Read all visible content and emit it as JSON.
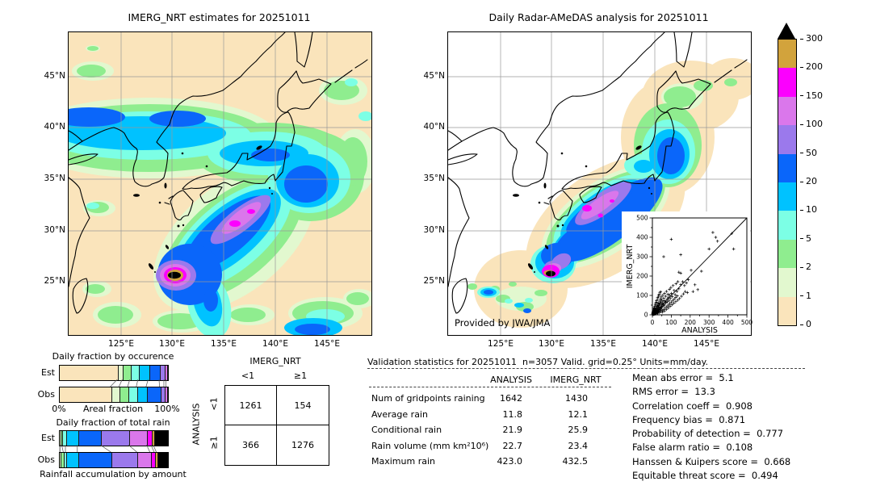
{
  "palette": {
    "levels_mm_day": [
      0,
      1,
      2,
      5,
      10,
      20,
      50,
      100,
      150,
      200,
      300
    ],
    "colors": [
      "#FAE4BB",
      "#E2F8CF",
      "#8FED8F",
      "#7CFFE5",
      "#00C2FF",
      "#0A66FA",
      "#9B79EC",
      "#DA77EB",
      "#FB00FE",
      "#D2A33C"
    ],
    "overflow_color": "#000000",
    "grid_color": "#999999"
  },
  "colorbar": {
    "labels": [
      "300",
      "200",
      "150",
      "100",
      "50",
      "20",
      "10",
      "5",
      "2",
      "1",
      "0"
    ]
  },
  "contingency": {
    "col_group": "IMERG_NRT",
    "row_group": "ANALYSIS",
    "col_labels": [
      "<1",
      "≥1"
    ],
    "row_labels": [
      "<1",
      "≥1"
    ],
    "cells": [
      [
        "1261",
        "154"
      ],
      [
        "366",
        "1276"
      ]
    ]
  },
  "validation": {
    "title": "Validation statistics for 20251011  n=3057 Valid. grid=0.25° Units=mm/day.",
    "columns": [
      "ANALYSIS",
      "IMERG_NRT"
    ],
    "rows": [
      {
        "label": "Num of gridpoints raining",
        "values": [
          "1642",
          "1430"
        ]
      },
      {
        "label": "Average rain",
        "values": [
          "11.8",
          "12.1"
        ]
      },
      {
        "label": "Conditional rain",
        "values": [
          "21.9",
          "25.9"
        ]
      },
      {
        "label": "Rain volume (mm km²10⁶)",
        "values": [
          "22.7",
          "23.4"
        ]
      },
      {
        "label": "Maximum rain",
        "values": [
          "423.0",
          "432.5"
        ]
      }
    ]
  },
  "scores": [
    {
      "label": "Mean abs error",
      "value": "5.1"
    },
    {
      "label": "RMS error",
      "value": "13.3"
    },
    {
      "label": "Correlation coeff",
      "value": "0.908"
    },
    {
      "label": "Frequency bias",
      "value": "0.871"
    },
    {
      "label": "Probability of detection",
      "value": "0.777"
    },
    {
      "label": "False alarm ratio",
      "value": "0.108"
    },
    {
      "label": "Hanssen & Kuipers score",
      "value": "0.668"
    },
    {
      "label": "Equitable threat score",
      "value": "0.494"
    }
  ],
  "chart_data": [
    {
      "type": "heatmap",
      "subtype": "filled-contour precipitation map",
      "title": "IMERG_NRT estimates for 20251011",
      "units": "mm/day",
      "x_ticks": [
        "125°E",
        "130°E",
        "135°E",
        "140°E",
        "145°E"
      ],
      "y_ticks": [
        "45°N",
        "40°N",
        "35°N",
        "30°N",
        "25°N"
      ],
      "levels_mm_day": [
        0,
        1,
        2,
        5,
        10,
        20,
        50,
        100,
        150,
        200,
        300
      ],
      "max_value": 432.5,
      "notes": "tropical-cyclone maximum >300 mm/day near 130E 25.5N; rain band along 40N; heavy SW-NE band south of Japan"
    },
    {
      "type": "heatmap",
      "subtype": "filled-contour precipitation map",
      "title": "Daily Radar-AMeDAS analysis for 20251011",
      "units": "mm/day",
      "credit": "Provided by JWA/JMA",
      "x_ticks": [
        "125°E",
        "130°E",
        "135°E",
        "140°E",
        "145°E"
      ],
      "y_ticks": [
        "45°N",
        "40°N",
        "35°N",
        "30°N",
        "25°N"
      ],
      "levels_mm_day": [
        0,
        1,
        2,
        5,
        10,
        20,
        50,
        100,
        150,
        200,
        300
      ],
      "max_value": 423.0,
      "notes": "radar coverage only near Japan; heavy band along Pacific coast; cyclone core >300 mm/day near 129.5E 25.5N"
    },
    {
      "type": "scatter",
      "xlabel": "ANALYSIS",
      "ylabel": "IMERG_NRT",
      "xlim": [
        0,
        500
      ],
      "ylim": [
        0,
        500
      ],
      "x_ticks": [
        0,
        100,
        200,
        300,
        400,
        500
      ],
      "y_ticks": [
        0,
        100,
        200,
        300,
        400,
        500
      ],
      "identity_line": true,
      "points": [
        [
          2,
          4
        ],
        [
          3,
          1
        ],
        [
          4,
          7
        ],
        [
          5,
          2
        ],
        [
          5,
          10
        ],
        [
          6,
          4
        ],
        [
          7,
          13
        ],
        [
          8,
          3
        ],
        [
          8,
          17
        ],
        [
          9,
          6
        ],
        [
          10,
          5
        ],
        [
          10,
          15
        ],
        [
          11,
          23
        ],
        [
          12,
          8
        ],
        [
          13,
          3
        ],
        [
          14,
          18
        ],
        [
          15,
          9
        ],
        [
          15,
          28
        ],
        [
          16,
          6
        ],
        [
          17,
          25
        ],
        [
          18,
          12
        ],
        [
          19,
          36
        ],
        [
          20,
          8
        ],
        [
          20,
          21
        ],
        [
          21,
          31
        ],
        [
          22,
          14
        ],
        [
          23,
          43
        ],
        [
          24,
          17
        ],
        [
          25,
          10
        ],
        [
          25,
          27
        ],
        [
          26,
          50
        ],
        [
          27,
          21
        ],
        [
          28,
          35
        ],
        [
          29,
          15
        ],
        [
          30,
          24
        ],
        [
          30,
          46
        ],
        [
          31,
          61
        ],
        [
          32,
          18
        ],
        [
          33,
          39
        ],
        [
          34,
          28
        ],
        [
          35,
          56
        ],
        [
          36,
          20
        ],
        [
          37,
          47
        ],
        [
          38,
          30
        ],
        [
          39,
          71
        ],
        [
          40,
          34
        ],
        [
          41,
          58
        ],
        [
          42,
          25
        ],
        [
          43,
          81
        ],
        [
          44,
          40
        ],
        [
          45,
          66
        ],
        [
          46,
          30
        ],
        [
          47,
          92
        ],
        [
          48,
          52
        ],
        [
          50,
          38
        ],
        [
          50,
          76
        ],
        [
          52,
          61
        ],
        [
          54,
          44
        ],
        [
          55,
          101
        ],
        [
          56,
          71
        ],
        [
          58,
          52
        ],
        [
          60,
          86
        ],
        [
          62,
          47
        ],
        [
          64,
          111
        ],
        [
          65,
          73
        ],
        [
          68,
          58
        ],
        [
          70,
          96
        ],
        [
          72,
          64
        ],
        [
          75,
          121
        ],
        [
          78,
          81
        ],
        [
          80,
          67
        ],
        [
          82,
          106
        ],
        [
          85,
          91
        ],
        [
          88,
          74
        ],
        [
          90,
          131
        ],
        [
          92,
          101
        ],
        [
          95,
          84
        ],
        [
          98,
          141
        ],
        [
          100,
          111
        ],
        [
          105,
          94
        ],
        [
          110,
          151
        ],
        [
          115,
          126
        ],
        [
          120,
          104
        ],
        [
          125,
          161
        ],
        [
          130,
          121
        ],
        [
          135,
          171
        ],
        [
          140,
          134
        ],
        [
          150,
          156
        ],
        [
          160,
          171
        ],
        [
          170,
          151
        ],
        [
          28,
          8
        ],
        [
          36,
          12
        ],
        [
          44,
          16
        ],
        [
          52,
          22
        ],
        [
          60,
          28
        ],
        [
          68,
          34
        ],
        [
          76,
          42
        ],
        [
          84,
          50
        ],
        [
          92,
          58
        ],
        [
          100,
          66
        ],
        [
          108,
          74
        ],
        [
          116,
          82
        ],
        [
          124,
          90
        ],
        [
          132,
          98
        ],
        [
          12,
          34
        ],
        [
          16,
          52
        ],
        [
          22,
          64
        ],
        [
          26,
          78
        ],
        [
          32,
          92
        ],
        [
          38,
          104
        ],
        [
          44,
          118
        ],
        [
          7,
          22
        ],
        [
          9,
          28
        ],
        [
          11,
          36
        ],
        [
          13,
          44
        ],
        [
          17,
          60
        ],
        [
          21,
          72
        ],
        [
          27,
          88
        ],
        [
          33,
          102
        ],
        [
          39,
          116
        ],
        [
          3,
          12
        ],
        [
          5,
          18
        ],
        [
          2,
          8
        ],
        [
          4,
          15
        ],
        [
          6,
          24
        ],
        [
          8,
          33
        ],
        [
          54,
          14
        ],
        [
          64,
          20
        ],
        [
          74,
          28
        ],
        [
          84,
          36
        ],
        [
          94,
          44
        ],
        [
          104,
          52
        ],
        [
          114,
          60
        ],
        [
          124,
          68
        ],
        [
          134,
          76
        ],
        [
          144,
          84
        ],
        [
          154,
          96
        ],
        [
          164,
          108
        ],
        [
          174,
          120
        ],
        [
          180,
          164
        ],
        [
          190,
          181
        ],
        [
          150,
          215
        ],
        [
          185,
          115
        ],
        [
          215,
          120
        ],
        [
          140,
          220
        ],
        [
          205,
          230
        ],
        [
          225,
          155
        ],
        [
          240,
          130
        ],
        [
          260,
          225
        ],
        [
          60,
          300
        ],
        [
          100,
          390
        ],
        [
          150,
          310
        ],
        [
          300,
          340
        ],
        [
          320,
          425
        ],
        [
          335,
          400
        ],
        [
          345,
          380
        ],
        [
          420,
          420
        ],
        [
          430,
          340
        ]
      ]
    },
    {
      "type": "bar",
      "orientation": "horizontal-stacked",
      "title": "Daily fraction by occurence",
      "xlabel": "Areal fraction",
      "xlim_labels": [
        "0%",
        "100%"
      ],
      "categories": [
        "Est",
        "Obs"
      ],
      "bins_mm_day": [
        "0-1",
        "1-2",
        "2-5",
        "5-10",
        "10-20",
        "20-50",
        "50-100",
        "100-150",
        "150-200"
      ],
      "series": [
        {
          "name": "Est",
          "percents": [
            54,
            4.5,
            7,
            7.5,
            9.5,
            10,
            4.5,
            2,
            1
          ]
        },
        {
          "name": "Obs",
          "percents": [
            47.5,
            8,
            8,
            8,
            9,
            12.5,
            4,
            2,
            1
          ]
        }
      ]
    },
    {
      "type": "bar",
      "orientation": "horizontal-stacked",
      "title": "Daily fraction of total rain",
      "caption": "Rainfall accumulation by amount",
      "categories": [
        "Est",
        "Obs"
      ],
      "bins_mm_day": [
        "0-1",
        "1-2",
        "2-5",
        "5-10",
        "10-20",
        "20-50",
        "50-100",
        "100-150",
        "150-200",
        "200-300",
        ">300"
      ],
      "series": [
        {
          "name": "Est",
          "percents": [
            0,
            1,
            1.5,
            3.5,
            11,
            21,
            26,
            17,
            4,
            2,
            13
          ]
        },
        {
          "name": "Obs",
          "percents": [
            0,
            1,
            3,
            2,
            11,
            31,
            24,
            12,
            4,
            2,
            10
          ]
        }
      ]
    }
  ]
}
